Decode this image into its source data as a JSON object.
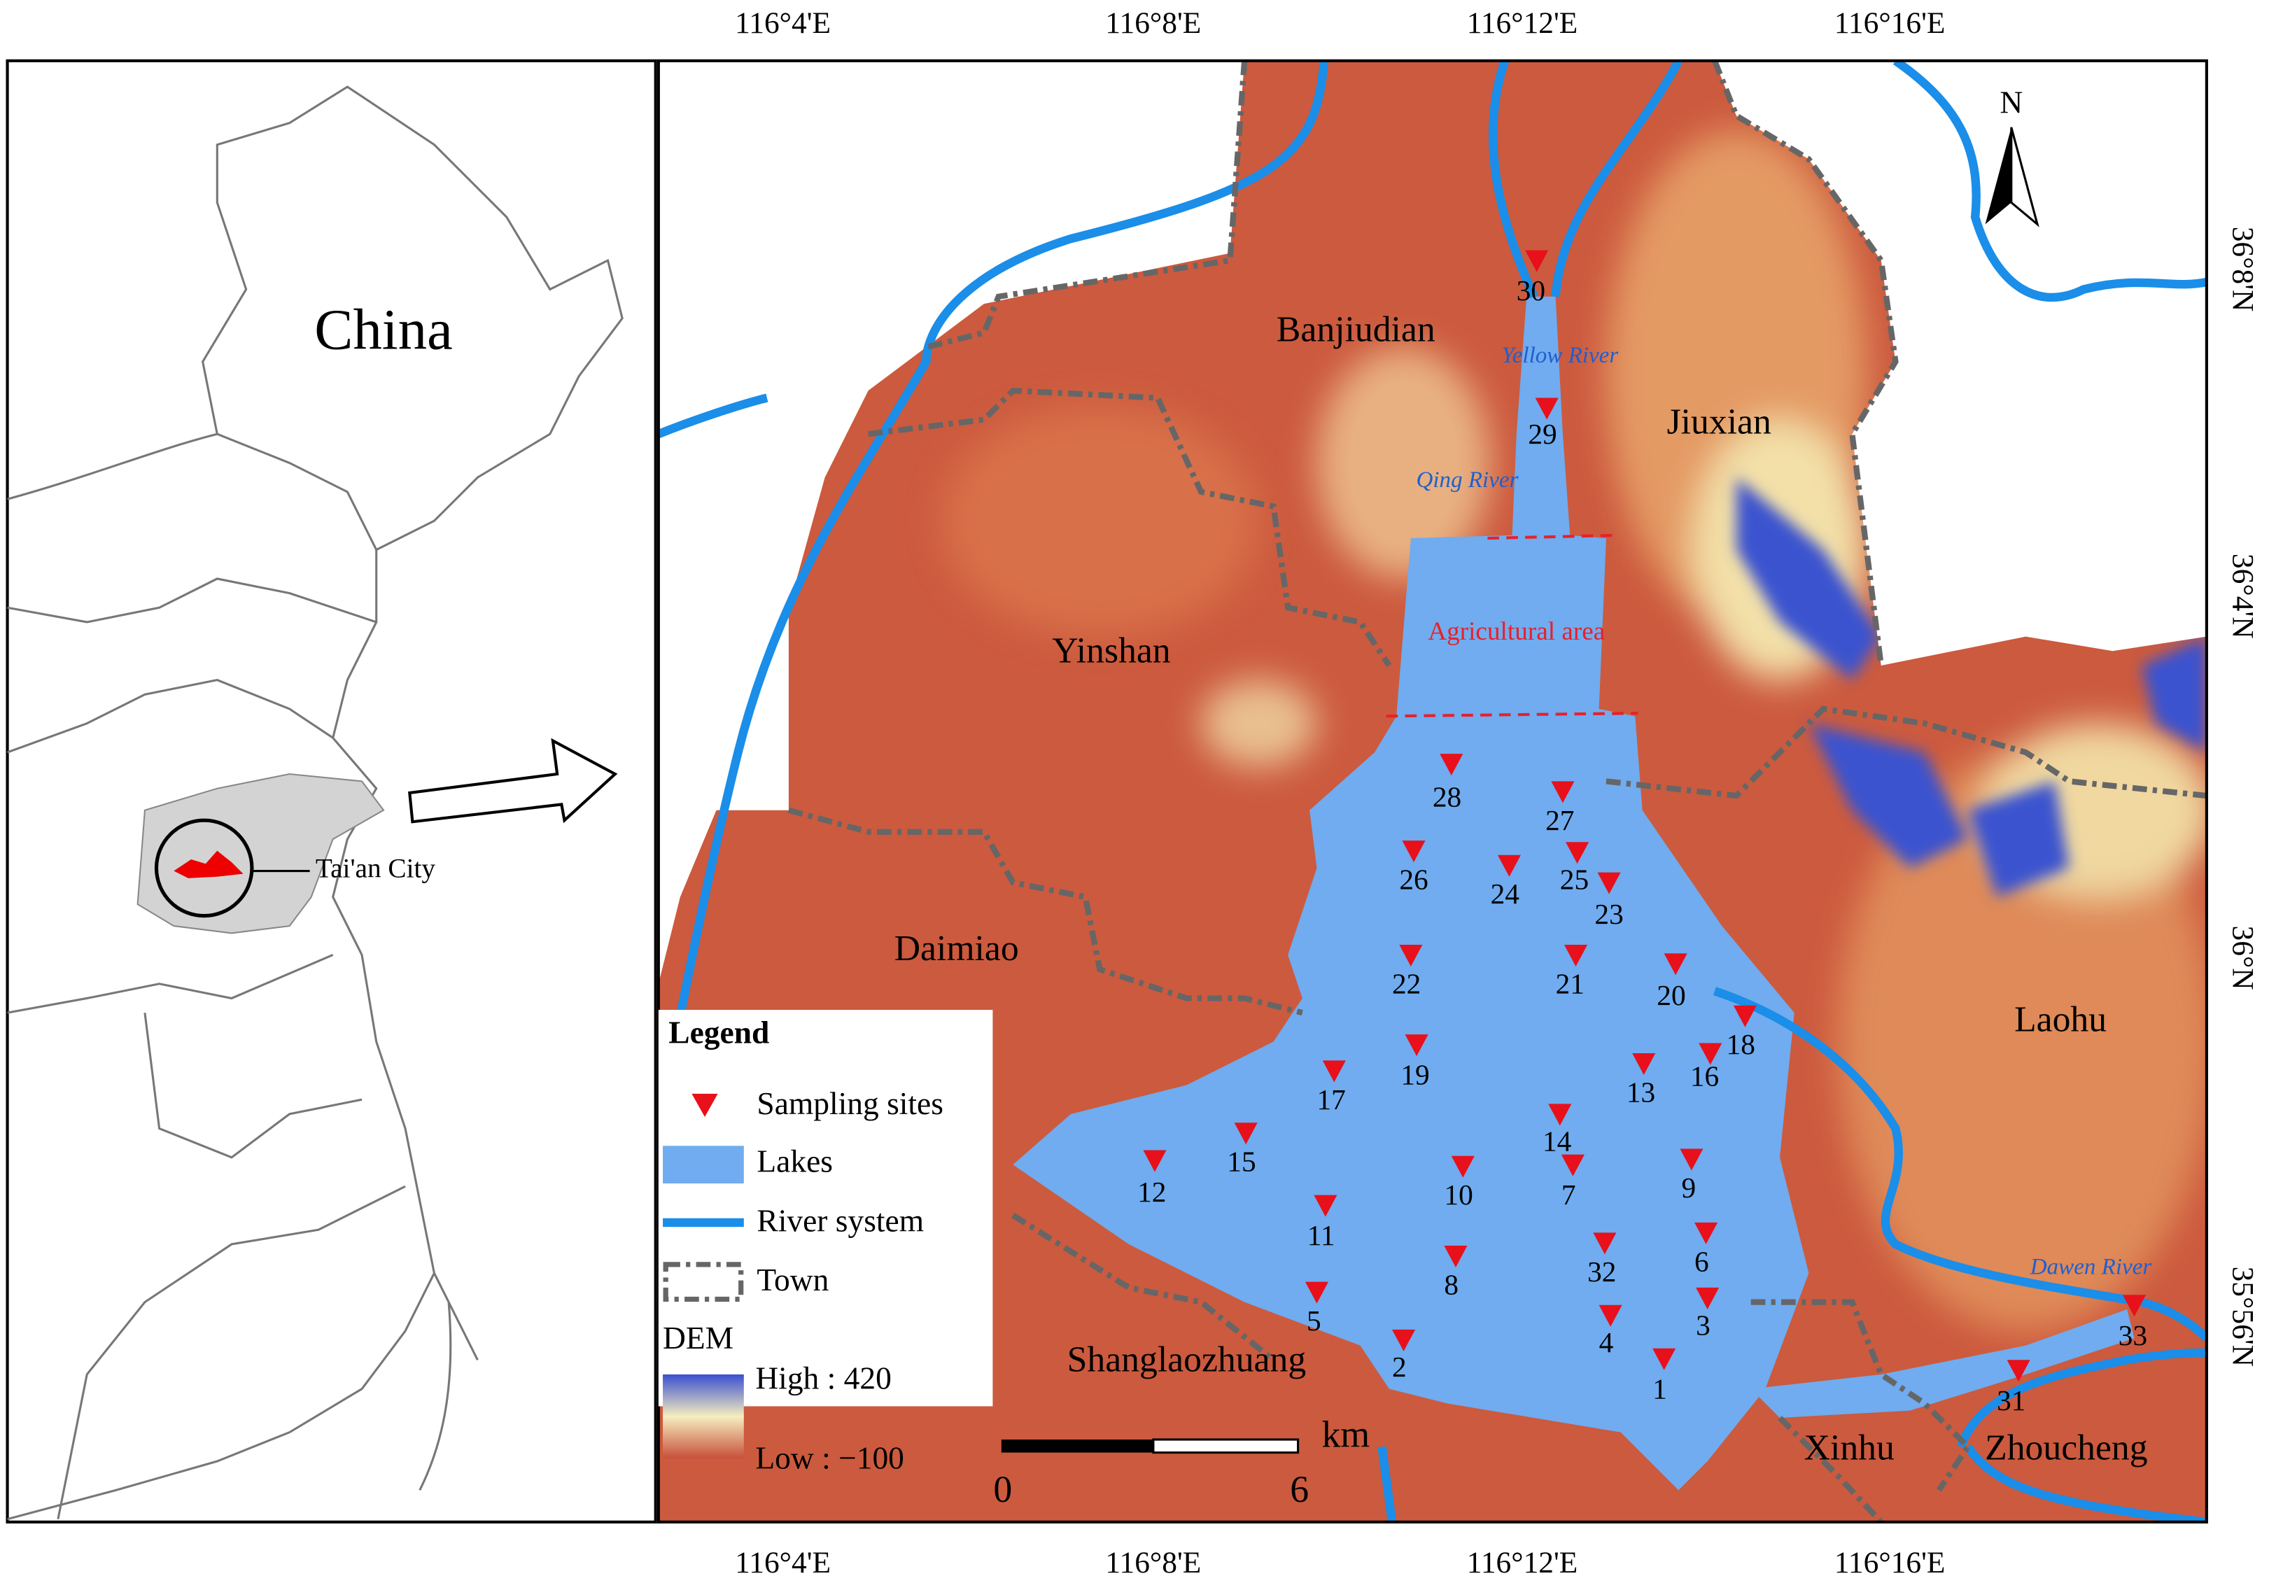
{
  "inset": {
    "country": "China",
    "city": "Tai'an City"
  },
  "map": {
    "lon_ticks": [
      "116°4'E",
      "116°8'E",
      "116°12'E",
      "116°16'E"
    ],
    "lat_ticks": [
      "36°8'N",
      "36°4'N",
      "36°N",
      "35°56'N"
    ],
    "towns": [
      "Banjiudian",
      "Jiuxian",
      "Yinshan",
      "Daimiao",
      "Laohu",
      "Shanglaozhuang",
      "Xinhu",
      "Zhoucheng"
    ],
    "rivers": [
      "Yellow River",
      "Qing River",
      "Dawen River"
    ],
    "area_label": "Agricultural area",
    "north": "N",
    "sites": [
      "1",
      "2",
      "3",
      "4",
      "5",
      "6",
      "7",
      "8",
      "9",
      "10",
      "11",
      "12",
      "13",
      "14",
      "15",
      "16",
      "17",
      "18",
      "19",
      "20",
      "21",
      "22",
      "23",
      "24",
      "25",
      "26",
      "27",
      "28",
      "29",
      "30",
      "31",
      "32",
      "33"
    ]
  },
  "legend": {
    "title": "Legend",
    "items": [
      "Sampling sites",
      "Lakes",
      "River system",
      "Town"
    ],
    "dem_title": "DEM",
    "dem_high": "High : 420",
    "dem_low": "Low : −100"
  },
  "scale": {
    "unit": "km",
    "start": 0,
    "end": 6
  }
}
